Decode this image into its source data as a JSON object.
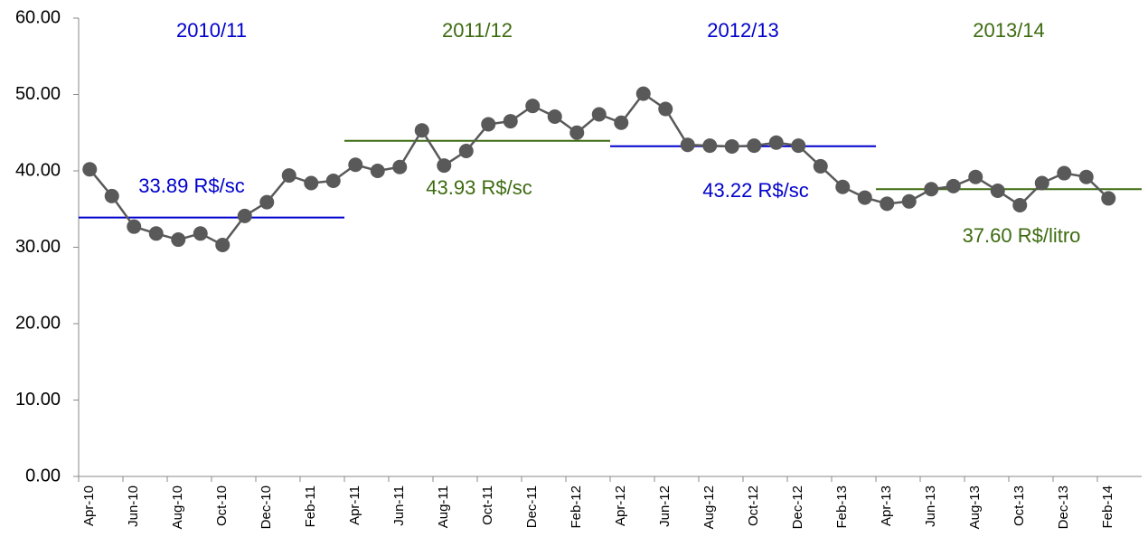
{
  "chart_data": {
    "type": "line",
    "categories": [
      "Apr-10",
      null,
      "Jun-10",
      null,
      "Aug-10",
      null,
      "Oct-10",
      null,
      "Dec-10",
      null,
      "Feb-11",
      null,
      "Apr-11",
      null,
      "Jun-11",
      null,
      "Aug-11",
      null,
      "Oct-11",
      null,
      "Dec-11",
      null,
      "Feb-12",
      null,
      "Apr-12",
      null,
      "Jun-12",
      null,
      "Aug-12",
      null,
      "Oct-12",
      null,
      "Dec-12",
      null,
      "Feb-13",
      null,
      "Apr-13",
      null,
      "Jun-13",
      null,
      "Aug-13",
      null,
      "Oct-13",
      null,
      "Dec-13",
      null,
      "Feb-14",
      null
    ],
    "series": [
      {
        "color": "#595959",
        "values": [
          40.2,
          36.7,
          32.7,
          31.8,
          31.0,
          31.8,
          30.3,
          34.1,
          35.9,
          39.4,
          38.4,
          38.7,
          40.8,
          40.0,
          40.5,
          45.3,
          40.7,
          42.6,
          46.1,
          46.5,
          48.5,
          47.1,
          45.0,
          47.4,
          46.3,
          50.1,
          48.1,
          43.4,
          43.3,
          43.2,
          43.3,
          43.7,
          43.3,
          40.6,
          37.9,
          36.5,
          35.7,
          36.0,
          37.6,
          38.0,
          39.2,
          37.4,
          35.5,
          38.4,
          39.7,
          39.2,
          36.4,
          null
        ]
      }
    ],
    "ylim": [
      0,
      60
    ],
    "yticks": [
      {
        "value": 0,
        "label": "0.00"
      },
      {
        "value": 10,
        "label": "10.00"
      },
      {
        "value": 20,
        "label": "20.00"
      },
      {
        "value": 30,
        "label": "30.00"
      },
      {
        "value": 40,
        "label": "40.00"
      },
      {
        "value": 50,
        "label": "50.00"
      },
      {
        "value": 60,
        "label": "60.00"
      }
    ],
    "periods": [
      {
        "name": "2010/11",
        "color": "#0000cc",
        "average": 33.89,
        "average_label": "33.89 R$/sc"
      },
      {
        "name": "2011/12",
        "color": "#3d6b10",
        "average": 43.93,
        "average_label": "43.93 R$/sc"
      },
      {
        "name": "2012/13",
        "color": "#0000cc",
        "average": 43.22,
        "average_label": "43.22 R$/sc"
      },
      {
        "name": "2013/14",
        "color": "#3d6b10",
        "average": 37.6,
        "average_label": "37.60 R$/litro"
      }
    ]
  }
}
